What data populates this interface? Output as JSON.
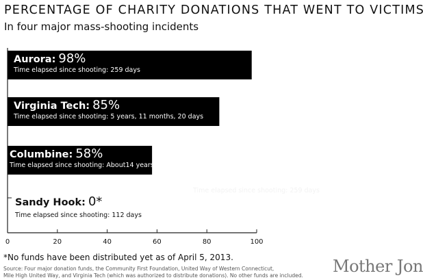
{
  "title": "PERCENTAGE OF CHARITY DONATIONS THAT WENT TO VICTIMS",
  "subtitle": "In four major mass-shooting incidents",
  "chart_data": {
    "type": "bar",
    "orientation": "horizontal",
    "categories": [
      "Aurora",
      "Virginia Tech",
      "Columbine",
      "Sandy Hook"
    ],
    "values": [
      98,
      85,
      58,
      0
    ],
    "value_labels": [
      "98%",
      "85%",
      "58%",
      "0*"
    ],
    "category_labels": [
      "Aurora:",
      "Virginia Tech:",
      "Columbine:",
      "Sandy Hook:"
    ],
    "sublabels": [
      "Time elapsed since shooting: 259 days",
      "Time elapsed since shooting: 5 years, 11 months, 20 days",
      "Time elapsed since shooting: About14 years",
      "Time elapsed since shooting: 112 days"
    ],
    "xlim": [
      0,
      100
    ],
    "xticks": [
      "0",
      "20",
      "40",
      "60",
      "80",
      "100"
    ],
    "bar_color": "#000000",
    "grid": false
  },
  "ghost_text": "Time elapsed since shooting: 259 days",
  "footnote": "*No funds have been distributed yet as of April 5, 2013.",
  "source_lines": [
    "Source: Four major donation funds,  the Community First Foundation, United Way of Western Connecticut,",
    "Mile High United Way, and Virginia Tech (which was authorized to distribute donations). No other funds are included."
  ],
  "logo": "Mother Jones"
}
